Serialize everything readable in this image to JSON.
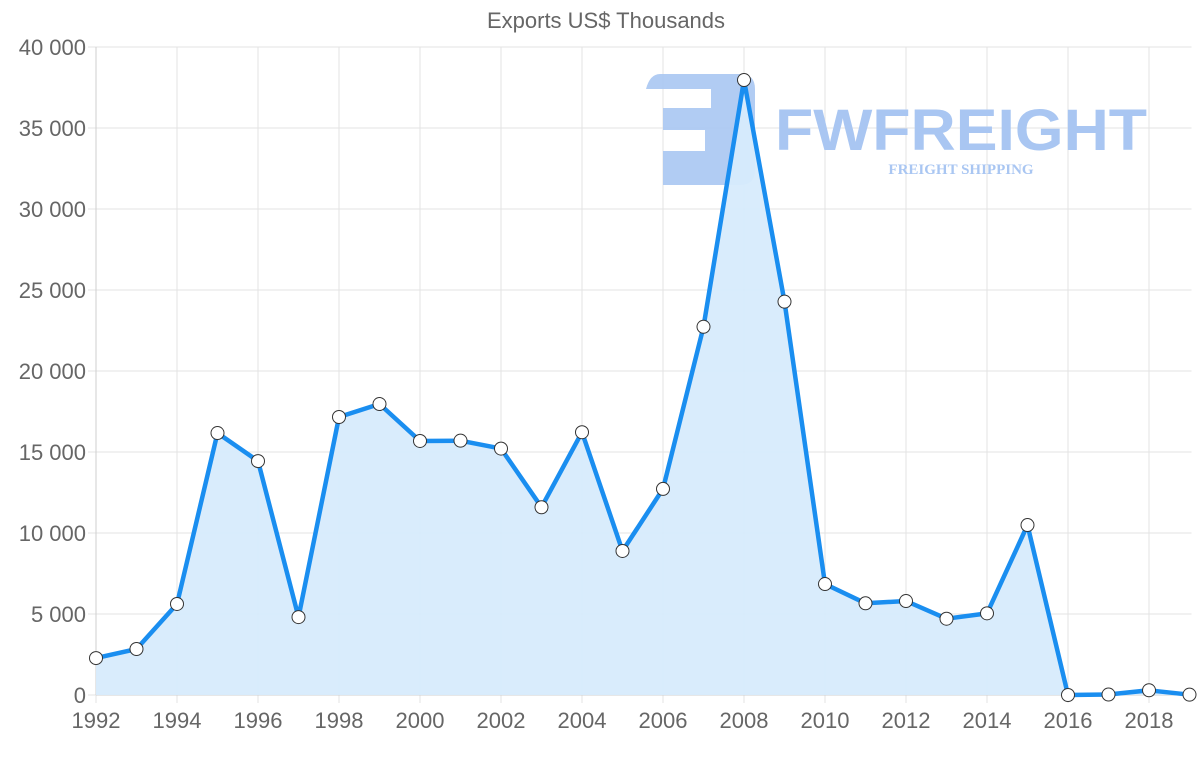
{
  "chart_data": {
    "type": "line",
    "title": "Exports US$ Thousands",
    "xlabel": "",
    "ylabel": "",
    "x": [
      1992,
      1993,
      1994,
      1995,
      1996,
      1997,
      1998,
      1999,
      2000,
      2001,
      2002,
      2003,
      2004,
      2005,
      2006,
      2007,
      2008,
      2009,
      2010,
      2011,
      2012,
      2013,
      2014,
      2015,
      2016,
      2017,
      2018,
      2019
    ],
    "series": [
      {
        "name": "Exports US$ Thousands",
        "values": [
          2280,
          2840,
          5620,
          16170,
          14440,
          4810,
          17160,
          17960,
          15680,
          15700,
          15210,
          11590,
          16220,
          8890,
          12720,
          22730,
          37960,
          24280,
          6850,
          5660,
          5800,
          4710,
          5040,
          10490,
          0,
          30,
          290,
          20
        ],
        "fill": true
      }
    ],
    "ylim": [
      0,
      40000
    ],
    "yticks": [
      "0",
      "5 000",
      "10 000",
      "15 000",
      "20 000",
      "25 000",
      "30 000",
      "35 000",
      "40 000"
    ],
    "xticks": [
      "1992",
      "1994",
      "1996",
      "1998",
      "2000",
      "2002",
      "2004",
      "2006",
      "2008",
      "2010",
      "2012",
      "2014",
      "2016",
      "2018"
    ],
    "grid": true,
    "legend": "none",
    "colors": {
      "line": "#1a8ef0",
      "fill": "#d7ebfc",
      "point_fill": "#ffffff",
      "point_border": "#333333",
      "grid": "#e3e3e3",
      "tick_text": "#666666"
    }
  },
  "watermark": {
    "brand": "FWFREIGHT",
    "tagline": "FREIGHT SHIPPING",
    "color": "#a9c6f2"
  }
}
